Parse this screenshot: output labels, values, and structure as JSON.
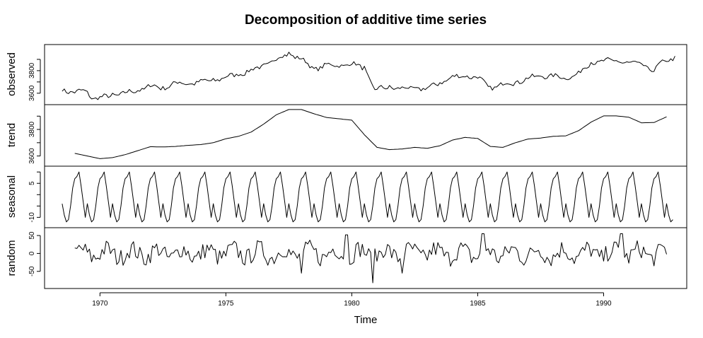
{
  "chart_data": {
    "type": "line",
    "title": "Decomposition of additive time series",
    "xlabel": "Time",
    "xlim": [
      1967.8,
      1993.3
    ],
    "xticks": [
      1970,
      1975,
      1980,
      1985,
      1990
    ],
    "xtick_labels": [
      "1970",
      "1975",
      "1980",
      "1985",
      "1990"
    ],
    "series_color": "#000000",
    "panels": [
      {
        "name": "observed",
        "ylabel": "observed",
        "ylim": [
          3530,
          4000
        ],
        "yticks": [
          3600,
          3700,
          3800,
          3900
        ],
        "ytick_labels": [
          "3600",
          "",
          "3800",
          ""
        ],
        "x_start": 1968.5,
        "frequency": 12,
        "anchors": [
          [
            1968.5,
            3640
          ],
          [
            1969.0,
            3600
          ],
          [
            1969.4,
            3635
          ],
          [
            1969.7,
            3560
          ],
          [
            1970.0,
            3555
          ],
          [
            1970.5,
            3590
          ],
          [
            1971.0,
            3600
          ],
          [
            1971.5,
            3630
          ],
          [
            1972.0,
            3665
          ],
          [
            1972.5,
            3650
          ],
          [
            1973.0,
            3690
          ],
          [
            1973.5,
            3690
          ],
          [
            1974.0,
            3700
          ],
          [
            1974.5,
            3720
          ],
          [
            1975.0,
            3740
          ],
          [
            1975.5,
            3775
          ],
          [
            1976.0,
            3800
          ],
          [
            1976.5,
            3850
          ],
          [
            1977.0,
            3900
          ],
          [
            1977.5,
            3960
          ],
          [
            1978.0,
            3900
          ],
          [
            1978.5,
            3820
          ],
          [
            1979.0,
            3850
          ],
          [
            1979.5,
            3850
          ],
          [
            1980.0,
            3860
          ],
          [
            1980.5,
            3830
          ],
          [
            1980.9,
            3630
          ],
          [
            1981.5,
            3660
          ],
          [
            1982.0,
            3640
          ],
          [
            1982.5,
            3650
          ],
          [
            1983.0,
            3640
          ],
          [
            1983.5,
            3700
          ],
          [
            1984.0,
            3740
          ],
          [
            1984.5,
            3760
          ],
          [
            1985.0,
            3740
          ],
          [
            1985.5,
            3650
          ],
          [
            1986.0,
            3680
          ],
          [
            1986.5,
            3700
          ],
          [
            1987.0,
            3730
          ],
          [
            1987.5,
            3760
          ],
          [
            1988.0,
            3750
          ],
          [
            1988.5,
            3740
          ],
          [
            1989.0,
            3770
          ],
          [
            1989.5,
            3880
          ],
          [
            1990.0,
            3880
          ],
          [
            1990.5,
            3900
          ],
          [
            1991.0,
            3860
          ],
          [
            1991.5,
            3870
          ],
          [
            1992.0,
            3790
          ],
          [
            1992.3,
            3880
          ],
          [
            1992.8,
            3920
          ]
        ],
        "seasonal_amplitude": 12,
        "noise_amplitude": 18
      },
      {
        "name": "trend",
        "ylabel": "trend",
        "ylim": [
          3550,
          3960
        ],
        "yticks": [
          3600,
          3700,
          3800,
          3900
        ],
        "ytick_labels": [
          "3600",
          "",
          "3800",
          ""
        ],
        "x_start": 1969.0,
        "frequency": 12,
        "anchors": [
          [
            1969.0,
            3620
          ],
          [
            1969.5,
            3600
          ],
          [
            1970.0,
            3580
          ],
          [
            1970.5,
            3588
          ],
          [
            1971.0,
            3610
          ],
          [
            1971.5,
            3640
          ],
          [
            1972.0,
            3670
          ],
          [
            1972.5,
            3668
          ],
          [
            1973.0,
            3672
          ],
          [
            1973.5,
            3680
          ],
          [
            1974.0,
            3686
          ],
          [
            1974.5,
            3700
          ],
          [
            1975.0,
            3730
          ],
          [
            1975.5,
            3748
          ],
          [
            1976.0,
            3780
          ],
          [
            1976.5,
            3840
          ],
          [
            1977.0,
            3910
          ],
          [
            1977.5,
            3950
          ],
          [
            1978.0,
            3950
          ],
          [
            1978.5,
            3918
          ],
          [
            1979.0,
            3890
          ],
          [
            1979.5,
            3880
          ],
          [
            1980.0,
            3870
          ],
          [
            1980.5,
            3760
          ],
          [
            1981.0,
            3665
          ],
          [
            1981.5,
            3648
          ],
          [
            1982.0,
            3653
          ],
          [
            1982.5,
            3665
          ],
          [
            1983.0,
            3658
          ],
          [
            1983.5,
            3677
          ],
          [
            1984.0,
            3720
          ],
          [
            1984.5,
            3740
          ],
          [
            1985.0,
            3732
          ],
          [
            1985.5,
            3672
          ],
          [
            1986.0,
            3665
          ],
          [
            1986.5,
            3700
          ],
          [
            1987.0,
            3728
          ],
          [
            1987.5,
            3735
          ],
          [
            1988.0,
            3748
          ],
          [
            1988.5,
            3752
          ],
          [
            1989.0,
            3790
          ],
          [
            1989.5,
            3855
          ],
          [
            1990.0,
            3902
          ],
          [
            1990.5,
            3902
          ],
          [
            1991.0,
            3892
          ],
          [
            1991.5,
            3850
          ],
          [
            1992.0,
            3852
          ],
          [
            1992.5,
            3895
          ]
        ],
        "seasonal_amplitude": 0,
        "noise_amplitude": 0
      },
      {
        "name": "seasonal",
        "ylabel": "seasonal",
        "ylim": [
          -13,
          11
        ],
        "yticks": [
          -10,
          -5,
          0,
          5,
          10
        ],
        "ytick_labels": [
          "-10",
          "",
          "",
          "5",
          ""
        ],
        "x_start": 1968.5,
        "x_end": 1992.75,
        "frequency": 12,
        "monthly_pattern": [
          -4,
          -9,
          -12,
          -11,
          -5,
          3,
          7,
          8,
          10,
          4,
          -3,
          -10
        ]
      },
      {
        "name": "random",
        "ylabel": "random",
        "ylim": [
          -88,
          62
        ],
        "yticks": [
          -50,
          0,
          50
        ],
        "ytick_labels": [
          "-50",
          "0",
          "50"
        ],
        "x_start": 1969.0,
        "x_end": 1992.5,
        "frequency": 12,
        "amplitude": 28,
        "spikes": [
          [
            1978.0,
            -55
          ],
          [
            1979.8,
            52
          ],
          [
            1980.85,
            -82
          ],
          [
            1982.0,
            -55
          ],
          [
            1985.2,
            55
          ],
          [
            1990.7,
            55
          ]
        ]
      }
    ]
  }
}
